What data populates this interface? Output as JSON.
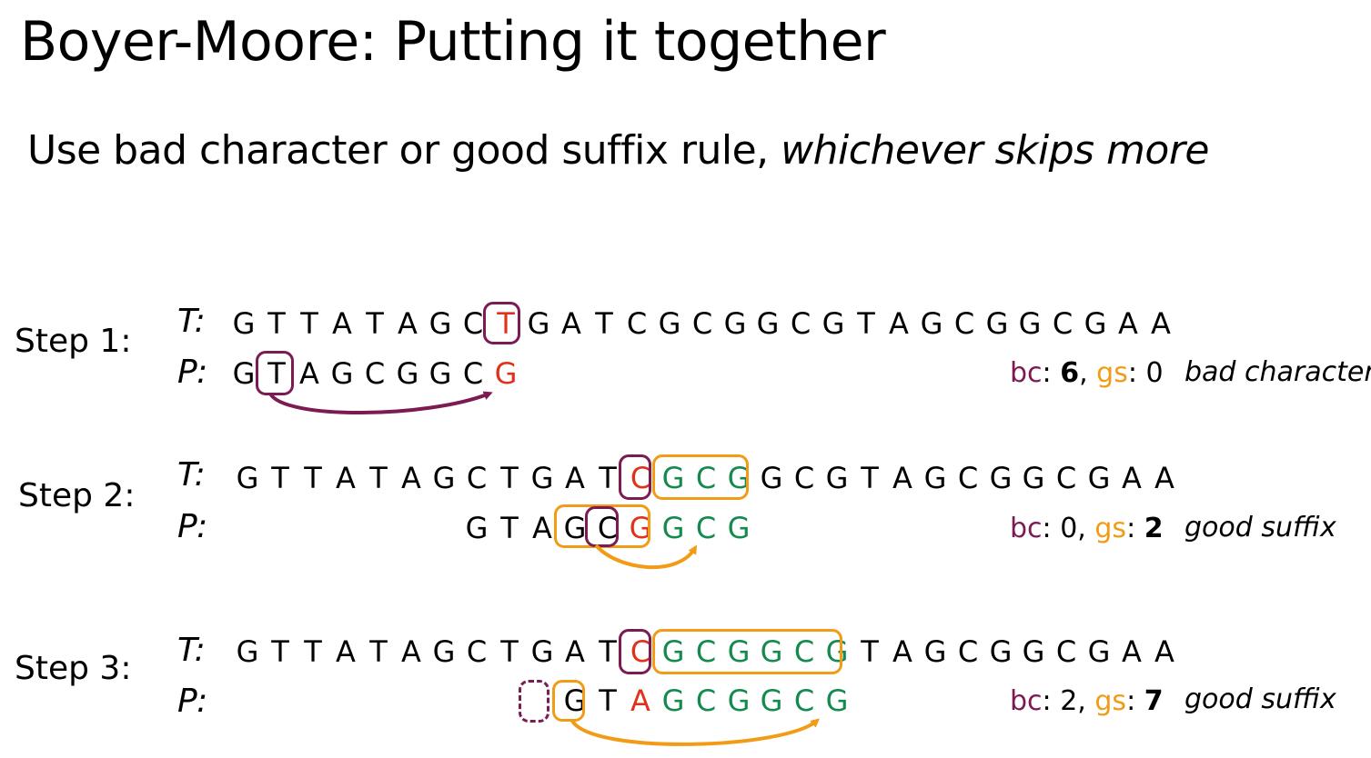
{
  "title": "Boyer-Moore: Putting it together",
  "subtitle": {
    "text": "Use bad character or good suffix rule, ",
    "emphasis": "whichever skips more"
  },
  "colors": {
    "bad_character": "#7b1b52",
    "good_suffix": "#f29b16",
    "mismatch": "#e0311b",
    "match": "#148a4f"
  },
  "labels": {
    "t": "T:",
    "p": "P:",
    "bc": "bc",
    "gs": "gs",
    "colon": ": ",
    "comma": ", "
  },
  "steps": [
    {
      "label": "Step 1:",
      "text": "GTTATAGCTGATCGCGGCGTAGCGGCGAA",
      "pattern": "GTAGCGGCG",
      "pattern_offset": 0,
      "t_colors": {
        "8": "red"
      },
      "p_colors": {
        "8": "red"
      },
      "bc": "6",
      "gs": "0",
      "winner": "bc",
      "verdict": "bad character"
    },
    {
      "label": "Step 2:",
      "text": "GTTATAGCTGATCGCGGCGTAGCGGCGAA",
      "pattern": "GTAGCGGCG",
      "pattern_offset": 7,
      "t_colors": {
        "12": "red",
        "13": "green",
        "14": "green",
        "15": "green"
      },
      "p_colors": {
        "5": "red",
        "6": "green",
        "7": "green",
        "8": "green"
      },
      "bc": "0",
      "gs": "2",
      "winner": "gs",
      "verdict": "good suffix"
    },
    {
      "label": "Step 3:",
      "text": "GTTATAGCTGATCGCGGCGTAGCGGCGAA",
      "pattern": "GTAGCGGCG",
      "pattern_offset": 10,
      "t_colors": {
        "12": "red",
        "13": "green",
        "14": "green",
        "15": "green",
        "16": "green",
        "17": "green",
        "18": "green"
      },
      "p_colors": {
        "2": "red",
        "3": "green",
        "4": "green",
        "5": "green",
        "6": "green",
        "7": "green",
        "8": "green"
      },
      "bc": "2",
      "gs": "7",
      "winner": "gs",
      "verdict": "good suffix"
    }
  ]
}
